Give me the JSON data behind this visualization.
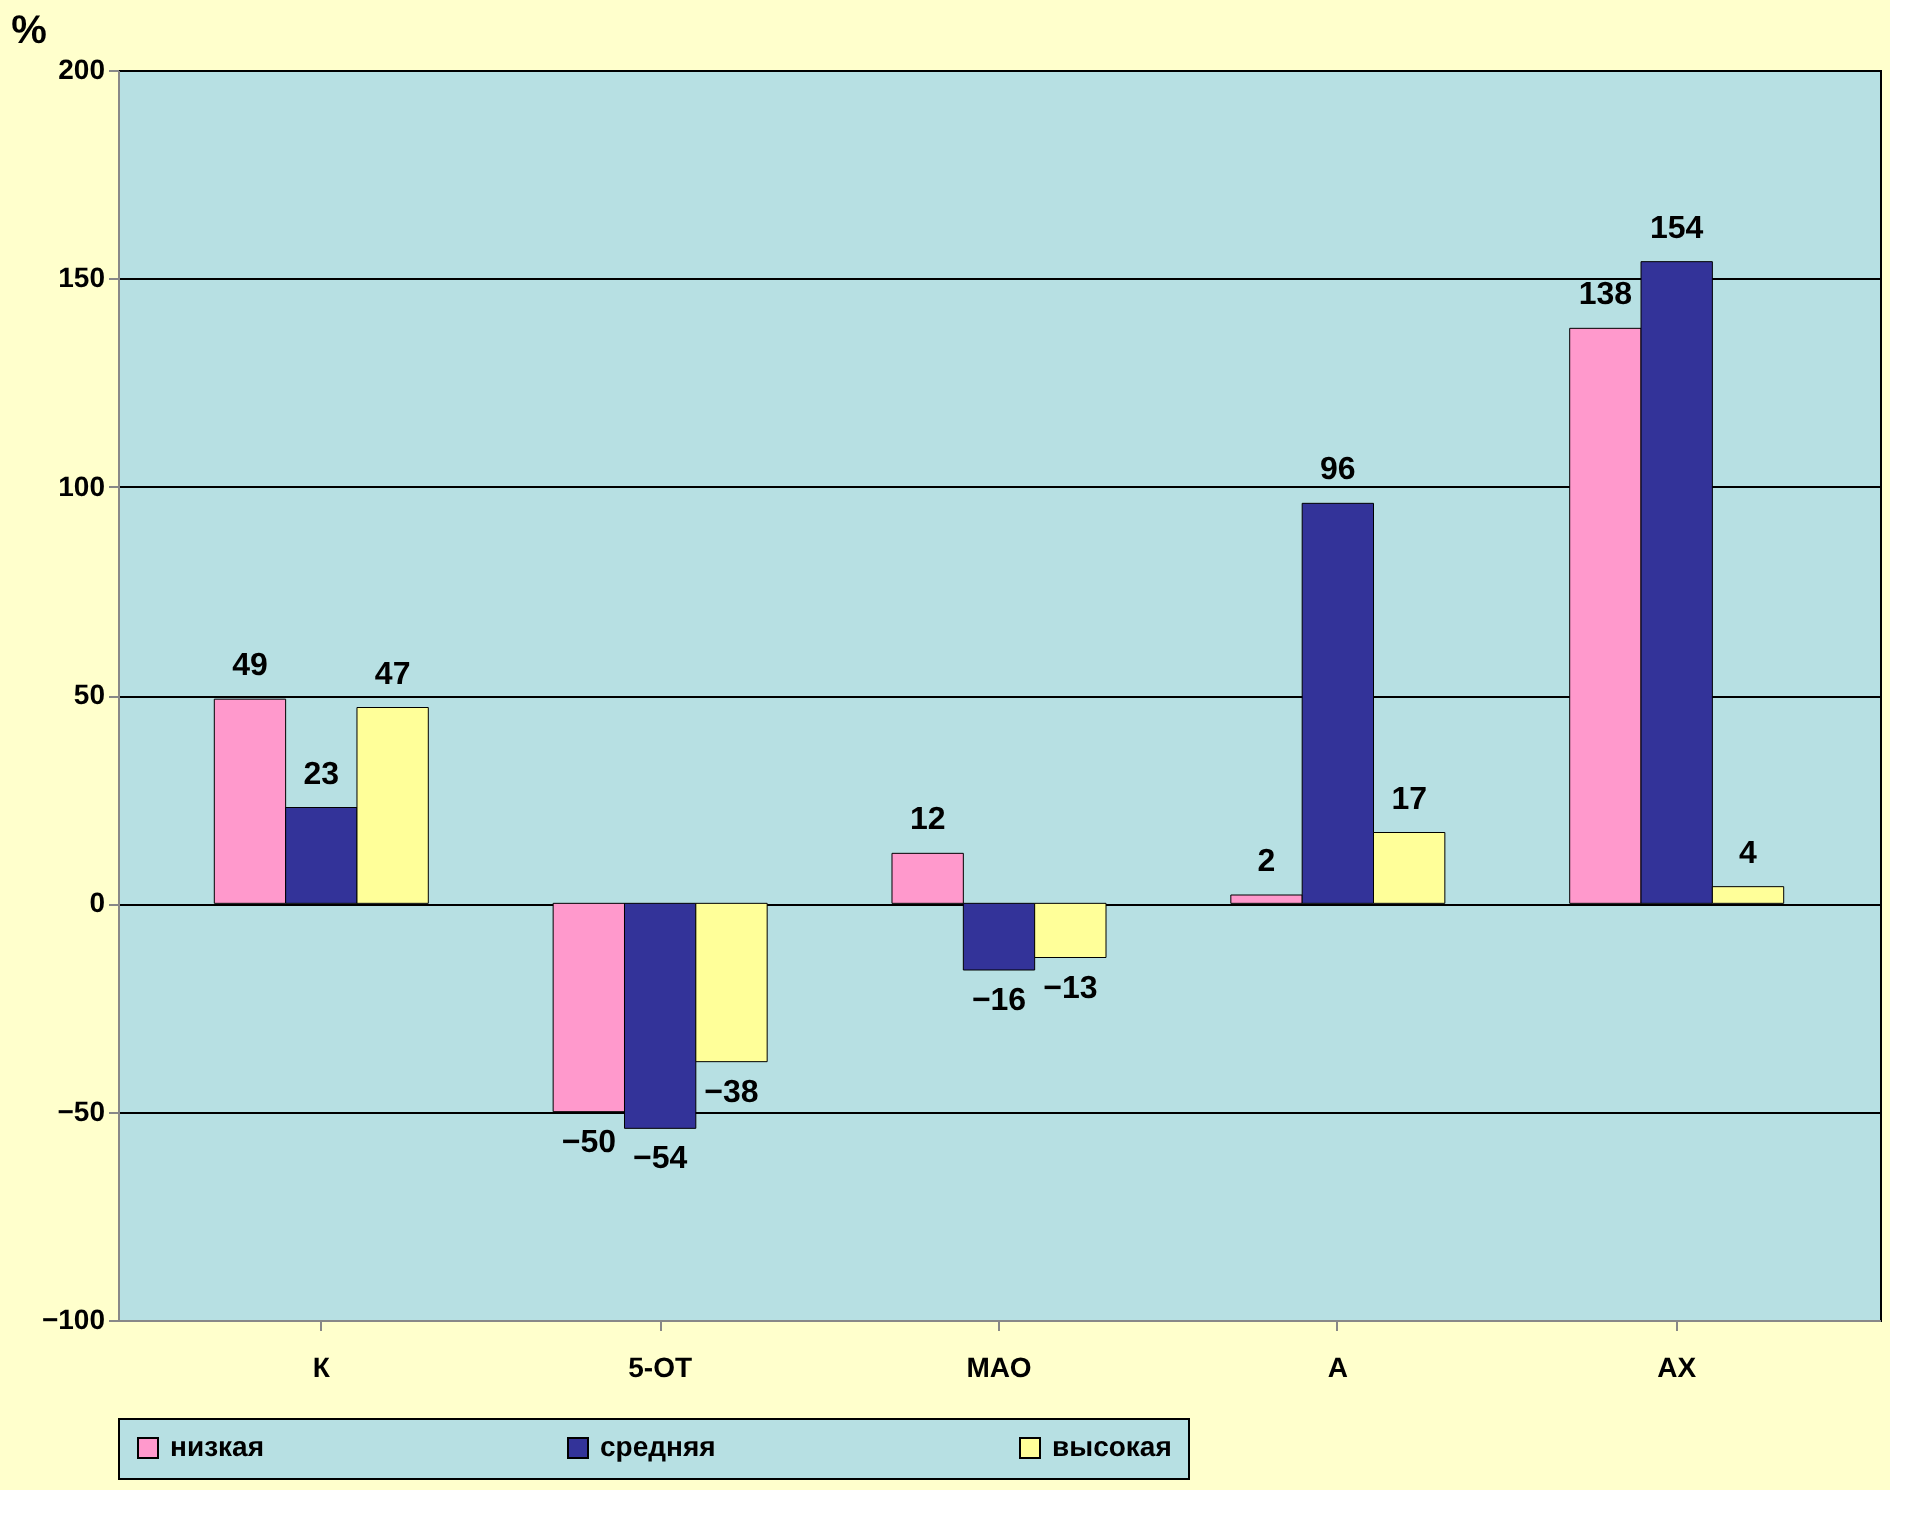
{
  "chart_data": {
    "type": "bar",
    "ylabel": "%",
    "categories": [
      "К",
      "5-ОТ",
      "МАО",
      "А",
      "АХ"
    ],
    "series": [
      {
        "name": "низкая",
        "color": "#ff99cc",
        "values": [
          49,
          -50,
          12,
          2,
          138
        ]
      },
      {
        "name": "средняя",
        "color": "#333399",
        "values": [
          23,
          -54,
          -16,
          96,
          154
        ]
      },
      {
        "name": "высокая",
        "color": "#ffff99",
        "values": [
          47,
          -38,
          -13,
          17,
          4
        ]
      }
    ],
    "ylim": [
      -100,
      200
    ],
    "yticks": [
      -100,
      -50,
      0,
      50,
      100,
      150,
      200
    ],
    "grid": "y",
    "legend": "bottom",
    "data_labels": true
  }
}
